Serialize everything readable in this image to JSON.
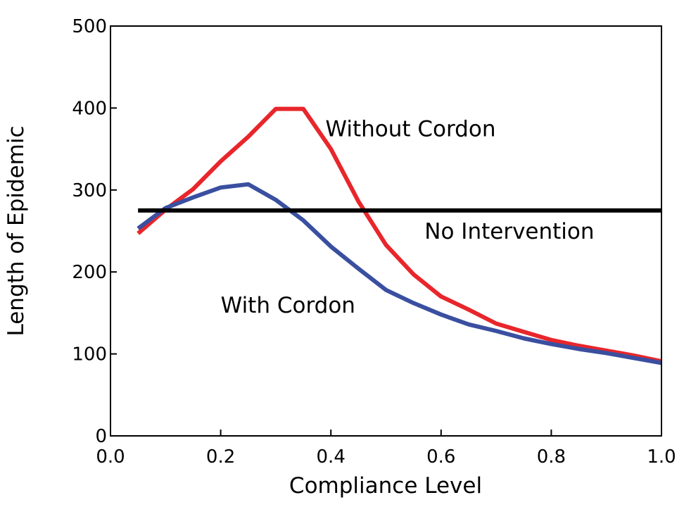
{
  "chart_data": {
    "type": "line",
    "title": "",
    "xlabel": "Compliance Level",
    "ylabel": "Length of Epidemic",
    "xlim": [
      0.0,
      1.0
    ],
    "ylim": [
      0,
      500
    ],
    "xticks": [
      "0.0",
      "0.2",
      "0.4",
      "0.6",
      "0.8",
      "1.0"
    ],
    "yticks": [
      "0",
      "100",
      "200",
      "300",
      "400",
      "500"
    ],
    "grid": false,
    "series": [
      {
        "name": "Without Cordon",
        "color": "#e8262b",
        "x": [
          0.05,
          0.1,
          0.15,
          0.2,
          0.25,
          0.3,
          0.35,
          0.4,
          0.45,
          0.5,
          0.55,
          0.6,
          0.65,
          0.7,
          0.75,
          0.8,
          0.85,
          0.9,
          0.95,
          1.0
        ],
        "y": [
          247,
          276,
          301,
          335,
          365,
          399,
          399,
          350,
          286,
          233,
          197,
          170,
          154,
          137,
          127,
          117,
          110,
          104,
          98,
          91
        ]
      },
      {
        "name": "With Cordon",
        "color": "#3a4fa0",
        "x": [
          0.05,
          0.1,
          0.15,
          0.2,
          0.25,
          0.3,
          0.35,
          0.4,
          0.45,
          0.5,
          0.55,
          0.6,
          0.65,
          0.7,
          0.75,
          0.8,
          0.85,
          0.9,
          0.95,
          1.0
        ],
        "y": [
          253,
          278,
          291,
          303,
          307,
          288,
          263,
          231,
          204,
          178,
          162,
          148,
          136,
          128,
          119,
          112,
          106,
          101,
          95,
          89
        ]
      }
    ],
    "reference_lines": [
      {
        "name": "No Intervention",
        "y": 275,
        "color": "#000000"
      }
    ],
    "annotations": [
      {
        "text": "Without Cordon",
        "x": 0.39,
        "y": 375
      },
      {
        "text": "No Intervention",
        "x": 0.57,
        "y": 250
      },
      {
        "text": "With Cordon",
        "x": 0.2,
        "y": 160
      }
    ]
  }
}
